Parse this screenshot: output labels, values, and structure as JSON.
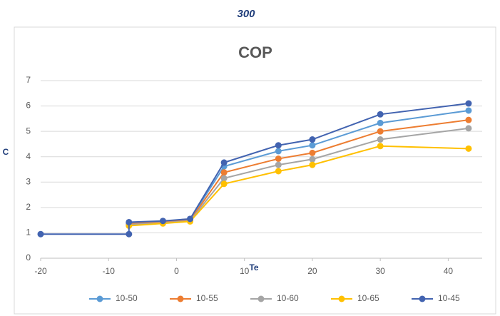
{
  "chart_data": {
    "type": "line",
    "supertitle": "300",
    "title": "COP",
    "xlabel": "Te",
    "ylabel": "C",
    "xlim": [
      -20,
      45
    ],
    "xticks": [
      -20,
      -10,
      0,
      10,
      20,
      30,
      40
    ],
    "ylim": [
      0,
      7
    ],
    "yticks": [
      0,
      1,
      2,
      3,
      4,
      5,
      6,
      7
    ],
    "grid": true,
    "legend": "bottom",
    "series": [
      {
        "name": "10-50",
        "color": "#5b9bd5",
        "x": [
          -7,
          -2,
          2,
          7,
          15,
          20,
          30,
          43
        ],
        "values": [
          1.38,
          1.45,
          1.52,
          3.62,
          4.22,
          4.45,
          5.33,
          5.82
        ]
      },
      {
        "name": "10-55",
        "color": "#ed7d31",
        "x": [
          -7,
          -2,
          2,
          7,
          15,
          20,
          30,
          43
        ],
        "values": [
          1.35,
          1.43,
          1.5,
          3.38,
          3.92,
          4.15,
          5.0,
          5.45
        ]
      },
      {
        "name": "10-60",
        "color": "#a5a5a5",
        "x": [
          -7,
          -2,
          2,
          7,
          15,
          20,
          30,
          43
        ],
        "values": [
          1.32,
          1.4,
          1.47,
          3.15,
          3.68,
          3.9,
          4.68,
          5.12
        ]
      },
      {
        "name": "10-65",
        "color": "#ffc000",
        "x": [
          -7,
          -2,
          2,
          7,
          15,
          20,
          30,
          43
        ],
        "values": [
          1.28,
          1.37,
          1.45,
          2.93,
          3.43,
          3.68,
          4.42,
          4.32
        ]
      },
      {
        "name": "10-45",
        "color": "#4263b0",
        "x": [
          -20,
          -7,
          -7,
          -2,
          2,
          7,
          15,
          20,
          30,
          43
        ],
        "values": [
          0.95,
          0.95,
          1.42,
          1.47,
          1.55,
          3.77,
          4.45,
          4.68,
          5.67,
          6.1
        ]
      }
    ]
  }
}
